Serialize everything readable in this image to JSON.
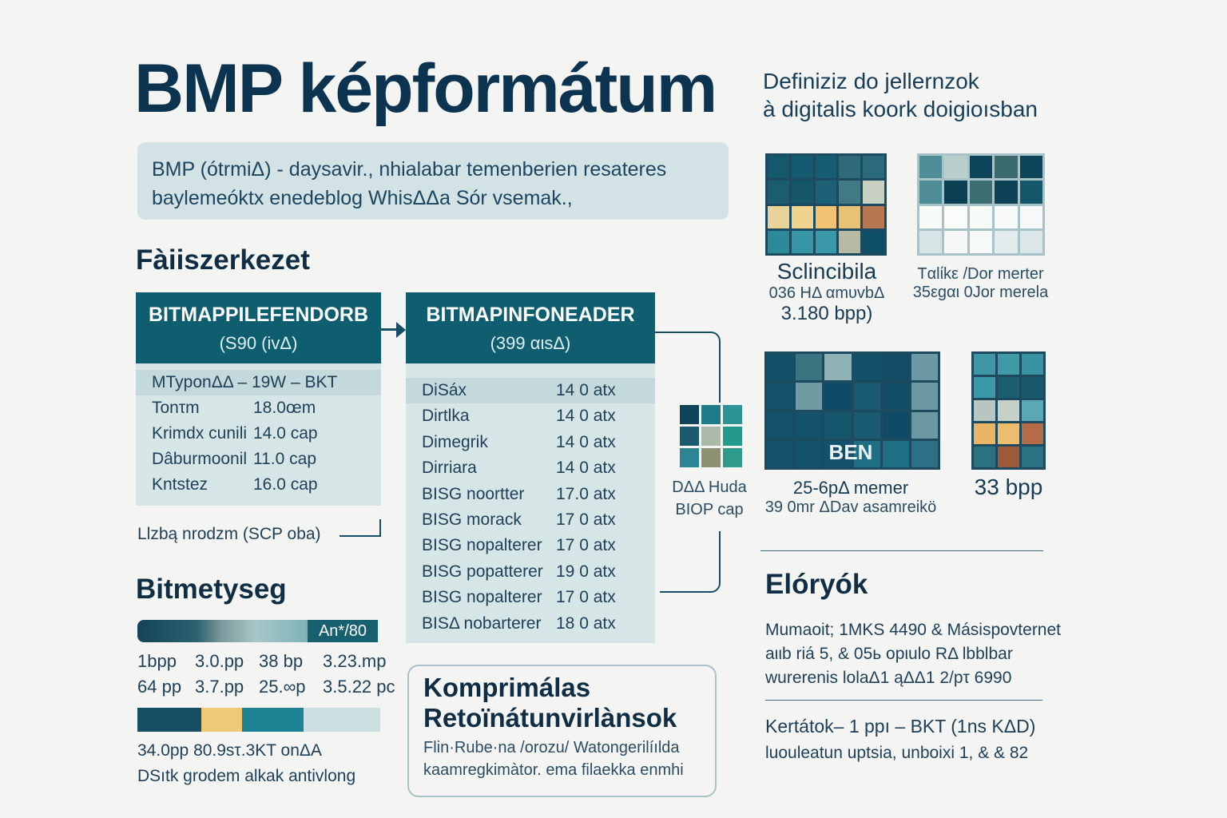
{
  "title": "BMP képformátum",
  "subtitle": [
    "Definiziz do jellernzok",
    "à digitalis koork doigioısban"
  ],
  "description": [
    "BMP (ótrmiΔ) - daysavir., nhialabar temenberien resateres",
    "baylemeóktx enedeblog WhisΔΔa Sór vsemak.,"
  ],
  "structure": {
    "heading": "Fàiiszerkezet",
    "file_header": {
      "name": "BITMAPPILEFENDORB",
      "size": "(S90 (ivΔ)",
      "rows": [
        [
          "MTyponΔΔ – 19W – BKT",
          ""
        ],
        [
          "Tonτm",
          "18.0œm"
        ],
        [
          "Krimdx cunili",
          "14.0 cap"
        ],
        [
          "Dâburmoonil",
          "11.0 cap"
        ],
        [
          "Kntstez",
          "16.0 cap"
        ]
      ]
    },
    "info_header": {
      "name": "BITMAPINFONEADER",
      "size": "(399 αιsΔ)",
      "rows": [
        [
          "DiSáx",
          "14 0 atx"
        ],
        [
          "Dirtlka",
          "14 0 atx"
        ],
        [
          "Dimegrik",
          "14 0 atx"
        ],
        [
          "Dirriara",
          "14 0 atx"
        ],
        [
          "BISG noortter",
          "17.0 atx"
        ],
        [
          "BISG morack",
          "17 0 atx"
        ],
        [
          "BISG nopalterer",
          "17 0 atx"
        ],
        [
          "BISG popatterer",
          "19 0 atx"
        ],
        [
          "BISG nopalterer",
          "17 0 atx"
        ],
        [
          "BISΔ nobarterer",
          "18 0 atx"
        ]
      ]
    },
    "palette_note": "Llzbą nrodzm (SCP oba)",
    "pixel_label": [
      "DΔΔ Ηuda",
      "BIOP cap"
    ]
  },
  "bitdepth": {
    "heading": "Bitmetyseg",
    "bar_label": "An*/80",
    "rows1": [
      [
        "1bpp",
        "3.0.pp",
        "38 bp",
        "3.23.mp"
      ],
      [
        "64 pp",
        "3.7.pp",
        "25.∞p",
        "3.5.22 pc"
      ]
    ],
    "rows2": [
      "34.0pp  80.9sτ.3KT onΔA",
      "DSıtk grodem alkak antivlong"
    ],
    "bar_colors": [
      "#174e63",
      "#f0c978",
      "#1d8394",
      "#cddfe1"
    ]
  },
  "compression": {
    "heading": [
      "Komprimálas",
      "Retoïnátunvirlànsok"
    ],
    "lines": [
      "Flin·Rube·na /orozu/ Watongerilíılda",
      "kaamregkimàtor. ema filaekka enmhi"
    ]
  },
  "samples": [
    {
      "label": "Sclincibila",
      "sub": [
        "036 HΔ αmυvbΔ",
        "3.180 bpp)"
      ],
      "cols": 5,
      "colors": [
        "#14586d",
        "#135a70",
        "#175d72",
        "#2e6a78",
        "#2a6a7a",
        "#1b5c71",
        "#16566b",
        "#1e6176",
        "#417a84",
        "#c8d0c4",
        "#ead39a",
        "#efd48e",
        "#f0c271",
        "#e7c176",
        "#b57650",
        "#2b8b9b",
        "#3796a6",
        "#3a98a8",
        "#b7bba5",
        "#0f4f66"
      ]
    },
    {
      "label": "Tαlίkε /Dor merter",
      "sub": [
        "35εgαι 0Jor merela"
      ],
      "cols": 5,
      "colors": [
        "#4f8d98",
        "#b9cfcc",
        "#0e4459",
        "#3b6a6d",
        "#0d4459",
        "#4e8d98",
        "#0d3f53",
        "#3d6e72",
        "#0e4056",
        "#16566a",
        "#f8faf8",
        "#fafcfa",
        "#f8faf8",
        "#f9fbfa",
        "#f7f9f8",
        "#d7e4e6",
        "#f6f8f7",
        "#f7f9f8",
        "#e3ecec",
        "#dbe6e8"
      ]
    },
    {
      "label": "25-6pΔ memer",
      "sub": [
        "39 0mr ΔDav asamreikö"
      ],
      "badge": "BEN",
      "cols": 6,
      "colors": [
        "#13506a",
        "#3b7380",
        "#8eb2b6",
        "#13506a",
        "#124b66",
        "#6e98a3",
        "#14526b",
        "#6f9ba2",
        "#0f4b66",
        "#1a5a70",
        "#124d68",
        "#6d99a2",
        "#14526b",
        "#14526b",
        "#16566d",
        "#1b5b72",
        "#0f4b66",
        "#6b97a0",
        "#14526b",
        "#14526b",
        "#14526b",
        "#1e6e84",
        "#1e6e84",
        "#2b7084"
      ]
    },
    {
      "label": "33 bpp",
      "cols": 3,
      "colors": [
        "#3f97a6",
        "#3f9aa8",
        "#3a93a3",
        "#3a98a8",
        "#1b5e72",
        "#19596e",
        "#b9c6c0",
        "#c7d0c6",
        "#5aa8b4",
        "#eab666",
        "#ebbd6d",
        "#b56a48",
        "#2a7282",
        "#9c5a3a",
        "#2a7282"
      ]
    }
  ],
  "pixel_grid": {
    "cols": 3,
    "colors": [
      "#0e4458",
      "#1f7b88",
      "#2c9494",
      "#1b5a6c",
      "#aab9a8",
      "#239a8b",
      "#2c8592",
      "#8e9174",
      "#2e9a8a"
    ]
  },
  "advantages": {
    "heading": "Elóryók",
    "lines": [
      "Mumaoit; 1MKS 4490 & Másispovternet",
      "aιιb riá 5, & 05ь opιulo RΔ lbblbar",
      "wurerenis lolaΔ1 ąΔΔ1 2/pτ 6990"
    ]
  },
  "disadvantages": {
    "lines": [
      "Kertátok– 1 ppı – BKT (1ns ΚΔD)",
      "luouleatun uptsia, unboixi 1, & & 82"
    ]
  }
}
